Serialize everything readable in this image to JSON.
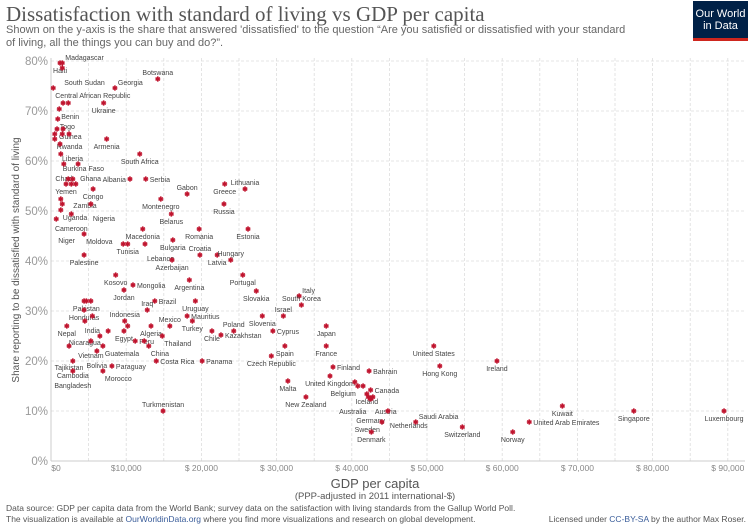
{
  "header": {
    "title": "Dissatisfaction with standard of living vs GDP per capita",
    "subtitle": "Shown on the y-axis is the share that answered 'dissatisfied' to the question “Are you satisfied or dissatisfied with your standard of living, all the things you can buy and do?”.",
    "logo_line1": "Our World",
    "logo_line2": "in Data"
  },
  "colors": {
    "marker": "#c0152f",
    "grid": "#dddddd",
    "logo_bg": "#002147",
    "logo_accent": "#ce261e"
  },
  "chart_data": {
    "type": "scatter",
    "title": "Dissatisfaction with standard of living vs GDP per capita",
    "xlabel": "GDP per capita",
    "xlabel_sub": "(PPP-adjusted in 2011 international-$)",
    "ylabel": "Share reporting to be dissatisfied with standard of living",
    "xlim": [
      0,
      93000
    ],
    "ylim": [
      0,
      80
    ],
    "grid": true,
    "x_ticks": [
      0,
      10000,
      20000,
      30000,
      40000,
      50000,
      60000,
      70000,
      80000,
      90000
    ],
    "x_tick_labels": [
      "$0",
      "$10,000",
      "$ 20,000",
      "$ 30,000",
      "$ 40,000",
      "$ 50,000",
      "$ 60,000",
      "$ 70,000",
      "$ 80,000",
      "$ 90,000"
    ],
    "y_ticks": [
      0,
      10,
      20,
      30,
      40,
      50,
      60,
      70,
      80
    ],
    "y_tick_labels": [
      "0%",
      "10%",
      "20%",
      "30%",
      "40%",
      "50%",
      "60%",
      "70%",
      "80%"
    ],
    "points": [
      [
        "Haiti",
        1200,
        79.6,
        "l"
      ],
      [
        "Madagascar",
        1500,
        79.6,
        "r"
      ],
      [
        "South Sudan",
        1500,
        78.6,
        "b"
      ],
      [
        "Central African Republic",
        300,
        74.6,
        "b"
      ],
      [
        "Georgia",
        8500,
        74.6,
        "br"
      ],
      [
        "Botswana",
        14200,
        76.4,
        "b"
      ],
      [
        "",
        1600,
        71.6,
        ""
      ],
      [
        "",
        2300,
        71.6,
        ""
      ],
      [
        "Benin",
        1100,
        70.4,
        "br"
      ],
      [
        "Ukraine",
        7000,
        71.6,
        "b"
      ],
      [
        "Togo",
        900,
        68.4,
        "l"
      ],
      [
        "Guinea",
        800,
        66.4,
        "br"
      ],
      [
        "",
        1600,
        66.4,
        ""
      ],
      [
        "",
        500,
        65.4,
        ""
      ],
      [
        "",
        1500,
        65.4,
        ""
      ],
      [
        "",
        2400,
        65.4,
        ""
      ],
      [
        "Rwanda",
        500,
        64.4,
        "r"
      ],
      [
        "Liberia",
        1200,
        63.4,
        "b"
      ],
      [
        "Armenia",
        7400,
        64.4,
        "b"
      ],
      [
        "Burkina Faso",
        1300,
        61.4,
        "r"
      ],
      [
        "South Africa",
        11800,
        61.4,
        "b"
      ],
      [
        "Chad",
        1700,
        59.4,
        "bl"
      ],
      [
        "Ghana",
        3600,
        59.4,
        "r"
      ],
      [
        "",
        2300,
        56.4,
        ""
      ],
      [
        "",
        2900,
        56.4,
        ""
      ],
      [
        "Yemen",
        2000,
        55.4,
        "bl"
      ],
      [
        "Zambia",
        2700,
        55.4,
        "br"
      ],
      [
        "",
        3300,
        55.4,
        ""
      ],
      [
        "Congo",
        5600,
        54.4,
        "b"
      ],
      [
        "Albania",
        10500,
        56.4,
        "l"
      ],
      [
        "Serbia",
        12600,
        56.4,
        "r"
      ],
      [
        "",
        1300,
        52.4,
        ""
      ],
      [
        "",
        1500,
        51.4,
        ""
      ],
      [
        "Uganda",
        1300,
        50.2,
        "b"
      ],
      [
        "Cameroon",
        2700,
        49.4,
        "b"
      ],
      [
        "Niger",
        700,
        48.4,
        "b"
      ],
      [
        "Nigeria",
        5300,
        51.4,
        "b"
      ],
      [
        "Montenegro",
        14600,
        52.4,
        "b"
      ],
      [
        "Gabon",
        18100,
        53.4,
        "b"
      ],
      [
        "Belarus",
        16000,
        49.4,
        "b"
      ],
      [
        "Greece",
        23100,
        55.4,
        "b"
      ],
      [
        "Lithuania",
        25800,
        54.4,
        "b"
      ],
      [
        "Russia",
        23000,
        51.4,
        "b"
      ],
      [
        "Moldova",
        4400,
        45.4,
        "b"
      ],
      [
        "Macedonia",
        12200,
        46.4,
        "b"
      ],
      [
        "Bulgaria",
        16200,
        44.2,
        "b"
      ],
      [
        "Romania",
        19700,
        46.4,
        "b"
      ],
      [
        "Estonia",
        26200,
        46.4,
        "b"
      ],
      [
        "",
        9600,
        43.4,
        ""
      ],
      [
        "Tunisia",
        10200,
        43.4,
        "b"
      ],
      [
        "Lebanon",
        12500,
        43.4,
        "b"
      ],
      [
        "Palestine",
        4400,
        41.2,
        "b"
      ],
      [
        "Azerbaijan",
        16100,
        40.2,
        "b"
      ],
      [
        "Croatia",
        19800,
        41.2,
        "b"
      ],
      [
        "Latvia",
        22100,
        41.2,
        "b"
      ],
      [
        "Hungary",
        23900,
        40.2,
        "b"
      ],
      [
        "Portugal",
        25500,
        37.2,
        "b"
      ],
      [
        "Kosovo",
        8600,
        37.2,
        "b"
      ],
      [
        "Mongolia",
        10900,
        35.2,
        "r"
      ],
      [
        "Jordan",
        9700,
        34.2,
        "b"
      ],
      [
        "Argentina",
        18400,
        36.2,
        "b"
      ],
      [
        "Slovakia",
        27300,
        34.0,
        "b"
      ],
      [
        "",
        4400,
        32,
        ""
      ],
      [
        "Pakistan",
        4700,
        32,
        "b"
      ],
      [
        "",
        5300,
        32,
        ""
      ],
      [
        "Brazil",
        13800,
        32,
        "r"
      ],
      [
        "Iraq",
        12800,
        30.2,
        "a"
      ],
      [
        "Uruguay",
        19200,
        32,
        "b"
      ],
      [
        "Honduras",
        4400,
        30.2,
        "l"
      ],
      [
        "India",
        5500,
        29,
        "b"
      ],
      [
        "Nicaragua",
        4500,
        28,
        "b"
      ],
      [
        "Nepal",
        2100,
        27,
        "b"
      ],
      [
        "",
        7600,
        26,
        ""
      ],
      [
        "Indonesia",
        9800,
        28,
        "a"
      ],
      [
        "",
        10200,
        27,
        ""
      ],
      [
        "Egypt",
        9700,
        26,
        "b"
      ],
      [
        "Algeria",
        13300,
        27,
        "b"
      ],
      [
        "Mexico",
        15800,
        27,
        "b"
      ],
      [
        "Mauritius",
        18100,
        29,
        "b"
      ],
      [
        "Turkey",
        18800,
        28,
        "b"
      ],
      [
        "",
        6500,
        25,
        ""
      ],
      [
        "Vietnam",
        5300,
        24,
        "l"
      ],
      [
        "Tajikistan",
        2400,
        23,
        "bl"
      ],
      [
        "Bolivia",
        6100,
        22,
        "b"
      ],
      [
        "Guatemala",
        6900,
        23,
        "br"
      ],
      [
        "Peru",
        11200,
        24,
        "b"
      ],
      [
        "",
        12400,
        24,
        ""
      ],
      [
        "China",
        13000,
        23,
        "b"
      ],
      [
        "Thailand",
        14800,
        25,
        "br"
      ],
      [
        "Cambodia",
        2900,
        20,
        "b"
      ],
      [
        "Bangladesh",
        2900,
        18,
        "b"
      ],
      [
        "Morocco",
        6900,
        18,
        "b"
      ],
      [
        "Paraguay",
        8100,
        19,
        "br"
      ],
      [
        "Costa Rica",
        14000,
        20,
        "r"
      ],
      [
        "Panama",
        20100,
        20,
        "r"
      ],
      [
        "Turkmenistan",
        14900,
        10,
        "a"
      ],
      [
        "Chile",
        21400,
        26,
        "a"
      ],
      [
        "Kazakhstan",
        22600,
        25.2,
        "b"
      ],
      [
        "Poland",
        24300,
        26,
        "a"
      ],
      [
        "Slovenia",
        28100,
        29,
        "b"
      ],
      [
        "Israel",
        30900,
        29,
        "b"
      ],
      [
        "Italy",
        33000,
        33,
        "ar"
      ],
      [
        "South Korea",
        33300,
        31.2,
        "b"
      ],
      [
        "Cyprus",
        29500,
        26,
        "b"
      ],
      [
        "Spain",
        31100,
        23,
        "b"
      ],
      [
        "Czech Republic",
        29300,
        21,
        "b"
      ],
      [
        "Japan",
        36600,
        27,
        "b"
      ],
      [
        "France",
        36600,
        23,
        "b"
      ],
      [
        "Malta",
        31500,
        16,
        "b"
      ],
      [
        "New Zealand",
        33900,
        12.8,
        "b"
      ],
      [
        "Finland",
        37500,
        18.8,
        "r"
      ],
      [
        "United Kingdom",
        37100,
        17,
        "b"
      ],
      [
        "",
        40400,
        15.8,
        ""
      ],
      [
        "Belgium",
        40800,
        15,
        "bl"
      ],
      [
        "",
        41500,
        15,
        ""
      ],
      [
        "Bahrain",
        42300,
        18,
        "r"
      ],
      [
        "Canada",
        42500,
        14.2,
        "r"
      ],
      [
        "Iceland",
        42000,
        13.4,
        "l"
      ],
      [
        "Australia",
        42200,
        12.8,
        "bl"
      ],
      [
        "Austria",
        42800,
        12.8,
        "r"
      ],
      [
        "Germany",
        42500,
        12.4,
        "b"
      ],
      [
        "Netherlands",
        44800,
        10,
        "r"
      ],
      [
        "Sweden",
        44000,
        7.8,
        "l"
      ],
      [
        "Denmark",
        42600,
        5.8,
        "b"
      ],
      [
        "Saudi Arabia",
        48500,
        7.8,
        "b"
      ],
      [
        "Switzerland",
        54700,
        6.8,
        "b"
      ],
      [
        "Norway",
        61400,
        5.8,
        "b"
      ],
      [
        "United Arab Emirates",
        63600,
        7.8,
        "r"
      ],
      [
        "United States",
        50900,
        23,
        "b"
      ],
      [
        "Hong Kong",
        51700,
        19,
        "b"
      ],
      [
        "Ireland",
        59300,
        20,
        "b"
      ],
      [
        "Kuwait",
        68000,
        11,
        "b"
      ],
      [
        "Singapore",
        77500,
        10,
        "b"
      ],
      [
        "Luxembourg",
        89500,
        10,
        "b"
      ]
    ]
  },
  "footer": {
    "source": "Data source: GDP per capita data from the World Bank; survey data on the satisfaction with living standards from the Gallup World Poll.",
    "avail_pre": "The visualization is available at ",
    "avail_link": "OurWorldinData.org",
    "avail_post": " where you find more visualizations and research on global development.",
    "license_pre": "Licensed under ",
    "license_link": "CC-BY-SA",
    "license_post": " by the author Max Roser."
  }
}
